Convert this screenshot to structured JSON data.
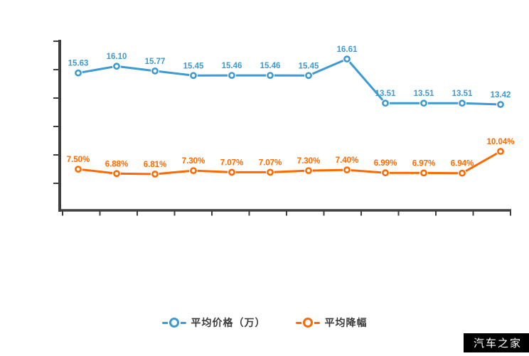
{
  "watermark": {
    "text": "汽车之家",
    "bg": "#000000",
    "fg": "#ffffff"
  },
  "legend": {
    "items": [
      {
        "label": "平均价格（万）",
        "color": "#3d9ad3"
      },
      {
        "label": "平均降幅",
        "color": "#ff6a00"
      }
    ]
  },
  "colors": {
    "axis": "#3f3f3f",
    "blue_series": "#3d9ad3",
    "orange_series": "#ff6a00"
  },
  "chart_data": {
    "type": "line",
    "title": "",
    "xlabel": "",
    "ylabel": "",
    "x_tick_labels": [],
    "grid": false,
    "legend_position": "bottom",
    "point_count": 12,
    "series": [
      {
        "name": "平均价格（万）",
        "color": "#3d9ad3",
        "values": [
          15.63,
          16.1,
          15.77,
          15.45,
          15.46,
          15.46,
          15.45,
          16.61,
          13.51,
          13.51,
          13.51,
          13.42
        ],
        "labels": [
          "15.63",
          "16.10",
          "15.77",
          "15.45",
          "15.46",
          "15.46",
          "15.45",
          "16.61",
          "13.51",
          "13.51",
          "13.51",
          "13.42"
        ]
      },
      {
        "name": "平均降幅",
        "color": "#ff6a00",
        "values": [
          7.5,
          6.88,
          6.81,
          7.3,
          7.07,
          7.07,
          7.3,
          7.4,
          6.99,
          6.97,
          6.94,
          10.04
        ],
        "labels": [
          "7.50%",
          "6.88%",
          "6.81%",
          "7.30%",
          "7.07%",
          "7.07%",
          "7.30%",
          "7.40%",
          "6.99%",
          "6.97%",
          "6.94%",
          "10.04%"
        ]
      }
    ]
  }
}
